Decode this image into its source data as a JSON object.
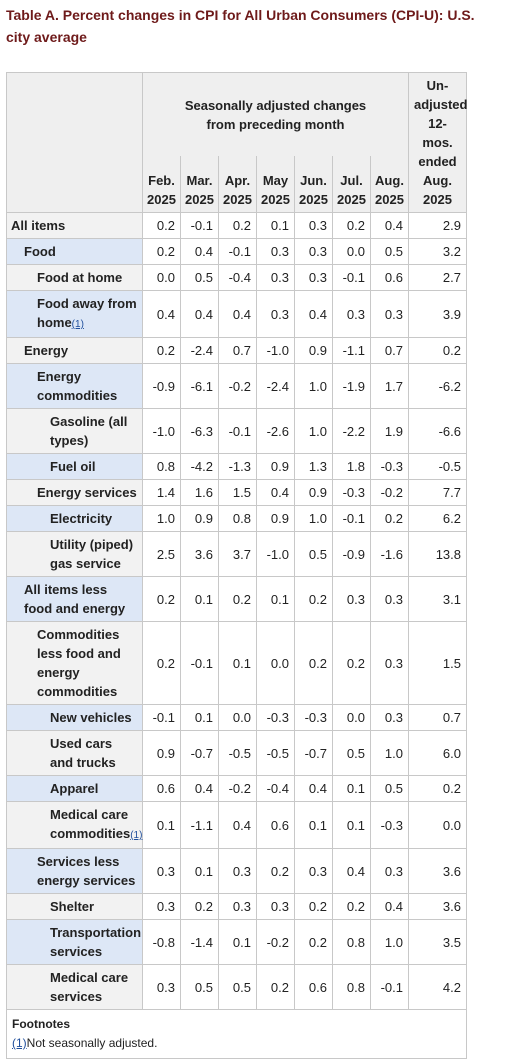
{
  "header": {
    "title": "Table A. Percent changes in CPI for All Urban Consumers (CPI-U): U.S. city average"
  },
  "table": {
    "group": "Seasonally adjusted changes from preceding month",
    "columns": [
      "Feb. 2025",
      "Mar. 2025",
      "Apr. 2025",
      "May 2025",
      "Jun. 2025",
      "Jul. 2025",
      "Aug. 2025"
    ],
    "unadjusted": "Un-adjusted 12-mos. ended Aug. 2025",
    "rows": [
      {
        "label": "All items",
        "level": 0,
        "shaded": false,
        "values": [
          "0.2",
          "-0.1",
          "0.2",
          "0.1",
          "0.3",
          "0.2",
          "0.4",
          "2.9"
        ]
      },
      {
        "label": "Food",
        "level": 1,
        "shaded": true,
        "values": [
          "0.2",
          "0.4",
          "-0.1",
          "0.3",
          "0.3",
          "0.0",
          "0.5",
          "3.2"
        ]
      },
      {
        "label": "Food at home",
        "level": 2,
        "shaded": false,
        "values": [
          "0.0",
          "0.5",
          "-0.4",
          "0.3",
          "0.3",
          "-0.1",
          "0.6",
          "2.7"
        ]
      },
      {
        "label": "Food away from home",
        "note": "(1)",
        "level": 2,
        "shaded": true,
        "values": [
          "0.4",
          "0.4",
          "0.4",
          "0.3",
          "0.4",
          "0.3",
          "0.3",
          "3.9"
        ]
      },
      {
        "label": "Energy",
        "level": 1,
        "shaded": false,
        "values": [
          "0.2",
          "-2.4",
          "0.7",
          "-1.0",
          "0.9",
          "-1.1",
          "0.7",
          "0.2"
        ]
      },
      {
        "label": "Energy commodities",
        "level": 2,
        "shaded": true,
        "values": [
          "-0.9",
          "-6.1",
          "-0.2",
          "-2.4",
          "1.0",
          "-1.9",
          "1.7",
          "-6.2"
        ]
      },
      {
        "label": "Gasoline (all types)",
        "level": 3,
        "shaded": false,
        "values": [
          "-1.0",
          "-6.3",
          "-0.1",
          "-2.6",
          "1.0",
          "-2.2",
          "1.9",
          "-6.6"
        ]
      },
      {
        "label": "Fuel oil",
        "level": 3,
        "shaded": true,
        "values": [
          "0.8",
          "-4.2",
          "-1.3",
          "0.9",
          "1.3",
          "1.8",
          "-0.3",
          "-0.5"
        ]
      },
      {
        "label": "Energy services",
        "level": 2,
        "shaded": false,
        "values": [
          "1.4",
          "1.6",
          "1.5",
          "0.4",
          "0.9",
          "-0.3",
          "-0.2",
          "7.7"
        ]
      },
      {
        "label": "Electricity",
        "level": 3,
        "shaded": true,
        "values": [
          "1.0",
          "0.9",
          "0.8",
          "0.9",
          "1.0",
          "-0.1",
          "0.2",
          "6.2"
        ]
      },
      {
        "label": "Utility (piped) gas service",
        "level": 3,
        "shaded": false,
        "values": [
          "2.5",
          "3.6",
          "3.7",
          "-1.0",
          "0.5",
          "-0.9",
          "-1.6",
          "13.8"
        ]
      },
      {
        "label": "All items less food and energy",
        "level": 1,
        "shaded": true,
        "values": [
          "0.2",
          "0.1",
          "0.2",
          "0.1",
          "0.2",
          "0.3",
          "0.3",
          "3.1"
        ]
      },
      {
        "label": "Commodities less food and energy commodities",
        "level": 2,
        "shaded": false,
        "values": [
          "0.2",
          "-0.1",
          "0.1",
          "0.0",
          "0.2",
          "0.2",
          "0.3",
          "1.5"
        ]
      },
      {
        "label": "New vehicles",
        "level": 3,
        "shaded": true,
        "values": [
          "-0.1",
          "0.1",
          "0.0",
          "-0.3",
          "-0.3",
          "0.0",
          "0.3",
          "0.7"
        ]
      },
      {
        "label": "Used cars and trucks",
        "level": 3,
        "shaded": false,
        "values": [
          "0.9",
          "-0.7",
          "-0.5",
          "-0.5",
          "-0.7",
          "0.5",
          "1.0",
          "6.0"
        ]
      },
      {
        "label": "Apparel",
        "level": 3,
        "shaded": true,
        "values": [
          "0.6",
          "0.4",
          "-0.2",
          "-0.4",
          "0.4",
          "0.1",
          "0.5",
          "0.2"
        ]
      },
      {
        "label": "Medical care commodities",
        "note": "(1)",
        "level": 3,
        "shaded": false,
        "values": [
          "0.1",
          "-1.1",
          "0.4",
          "0.6",
          "0.1",
          "0.1",
          "-0.3",
          "0.0"
        ]
      },
      {
        "label": "Services less energy services",
        "level": 2,
        "shaded": true,
        "values": [
          "0.3",
          "0.1",
          "0.3",
          "0.2",
          "0.3",
          "0.4",
          "0.3",
          "3.6"
        ]
      },
      {
        "label": "Shelter",
        "level": 3,
        "shaded": false,
        "values": [
          "0.3",
          "0.2",
          "0.3",
          "0.3",
          "0.2",
          "0.2",
          "0.4",
          "3.6"
        ]
      },
      {
        "label": "Transportation services",
        "level": 3,
        "shaded": true,
        "values": [
          "-0.8",
          "-1.4",
          "0.1",
          "-0.2",
          "0.2",
          "0.8",
          "1.0",
          "3.5"
        ]
      },
      {
        "label": "Medical care services",
        "level": 3,
        "shaded": false,
        "values": [
          "0.3",
          "0.5",
          "0.5",
          "0.2",
          "0.6",
          "0.8",
          "-0.1",
          "4.2"
        ]
      }
    ],
    "footnotes": {
      "title": "Footnotes",
      "items": [
        {
          "marker": "(1)",
          "text": "Not seasonally adjusted."
        }
      ]
    }
  }
}
